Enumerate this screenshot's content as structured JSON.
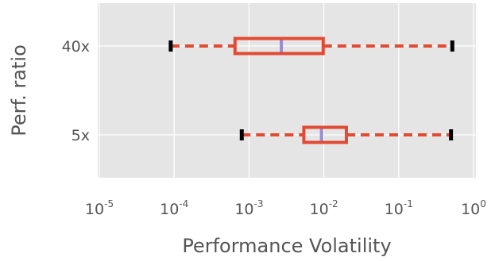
{
  "chart_data": {
    "type": "boxplot",
    "orientation": "horizontal",
    "xlabel": "Performance Volatility",
    "ylabel": "Perf. ratio",
    "xscale": "log",
    "xlim": [
      1e-05,
      1
    ],
    "xticks": [
      {
        "value": 1e-05,
        "base": "10",
        "exp": "-5"
      },
      {
        "value": 0.0001,
        "base": "10",
        "exp": "-4"
      },
      {
        "value": 0.001,
        "base": "10",
        "exp": "-3"
      },
      {
        "value": 0.01,
        "base": "10",
        "exp": "-2"
      },
      {
        "value": 0.1,
        "base": "10",
        "exp": "-1"
      },
      {
        "value": 1,
        "base": "10",
        "exp": "0"
      }
    ],
    "categories": [
      "40x",
      "5x"
    ],
    "series": [
      {
        "category": "40x",
        "whisker_low": 9e-05,
        "q1": 0.00065,
        "median": 0.0027,
        "q3": 0.0098,
        "whisker_high": 0.52
      },
      {
        "category": "5x",
        "whisker_low": 0.0008,
        "q1": 0.0054,
        "median": 0.0093,
        "q3": 0.02,
        "whisker_high": 0.5
      }
    ],
    "grid": true,
    "colors": {
      "background": "#e5e5e5",
      "grid": "#ffffff",
      "box": "#e24a33",
      "median": "#988ed5",
      "cap": "#000000",
      "text": "#555555"
    }
  }
}
